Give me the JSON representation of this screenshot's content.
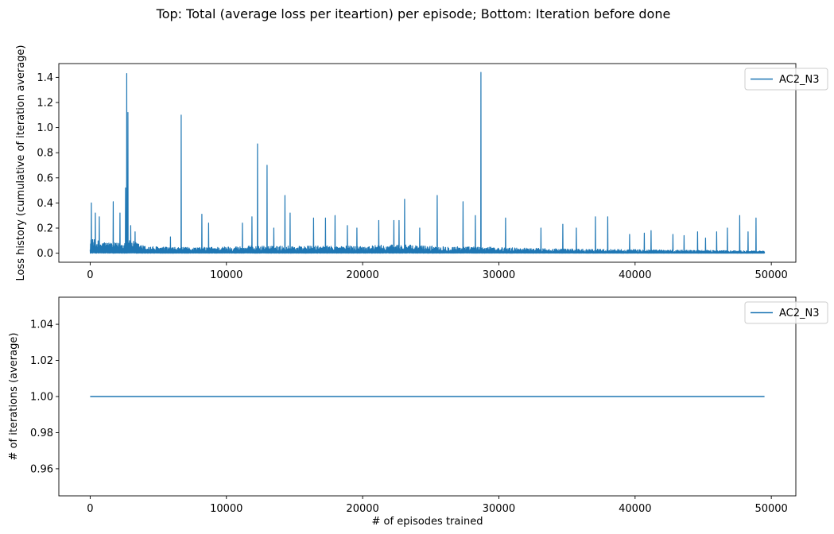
{
  "figure": {
    "suptitle": "Top: Total (average loss per iteartion) per episode; Bottom: Iteration before done"
  },
  "colors": {
    "series": "#1f77b4",
    "axis": "#000000",
    "legend_border": "#cccccc"
  },
  "chart_data": [
    {
      "type": "line",
      "position": "top",
      "xlabel": "",
      "ylabel": "Loss history (cumulative of iteration average)",
      "xlim": [
        -2300,
        51800
      ],
      "ylim": [
        -0.072,
        1.51
      ],
      "xticks": [
        0,
        10000,
        20000,
        30000,
        40000,
        50000
      ],
      "xtick_labels": [
        "0",
        "10000",
        "20000",
        "30000",
        "40000",
        "50000"
      ],
      "yticks": [
        0.0,
        0.2,
        0.4,
        0.6,
        0.8,
        1.0,
        1.2,
        1.4
      ],
      "ytick_labels": [
        "0.0",
        "0.2",
        "0.4",
        "0.6",
        "0.8",
        "1.0",
        "1.2",
        "1.4"
      ],
      "grid": false,
      "legend_position": "top-right",
      "series": [
        {
          "name": "AC2_N3",
          "x_range": [
            0,
            49500
          ],
          "baseline_noise": [
            [
              0,
              0.1
            ],
            [
              1000,
              0.08
            ],
            [
              2000,
              0.07
            ],
            [
              3000,
              0.09
            ],
            [
              4000,
              0.05
            ],
            [
              6000,
              0.04
            ],
            [
              8000,
              0.04
            ],
            [
              12000,
              0.05
            ],
            [
              16000,
              0.05
            ],
            [
              20000,
              0.05
            ],
            [
              22500,
              0.06
            ],
            [
              25000,
              0.05
            ],
            [
              30000,
              0.04
            ],
            [
              35000,
              0.03
            ],
            [
              40000,
              0.025
            ],
            [
              45000,
              0.02
            ],
            [
              49500,
              0.015
            ]
          ],
          "spikes": [
            [
              100,
              0.4
            ],
            [
              400,
              0.32
            ],
            [
              700,
              0.29
            ],
            [
              1700,
              0.41
            ],
            [
              2200,
              0.32
            ],
            [
              2600,
              0.52
            ],
            [
              2700,
              1.43
            ],
            [
              2800,
              1.12
            ],
            [
              3000,
              0.22
            ],
            [
              3300,
              0.17
            ],
            [
              5900,
              0.13
            ],
            [
              6700,
              1.1
            ],
            [
              8200,
              0.31
            ],
            [
              8700,
              0.24
            ],
            [
              11200,
              0.24
            ],
            [
              11900,
              0.29
            ],
            [
              12300,
              0.87
            ],
            [
              13000,
              0.7
            ],
            [
              13500,
              0.2
            ],
            [
              14300,
              0.46
            ],
            [
              14700,
              0.32
            ],
            [
              16400,
              0.28
            ],
            [
              17300,
              0.28
            ],
            [
              18000,
              0.3
            ],
            [
              18900,
              0.22
            ],
            [
              19600,
              0.2
            ],
            [
              21200,
              0.26
            ],
            [
              22300,
              0.26
            ],
            [
              22700,
              0.26
            ],
            [
              23100,
              0.43
            ],
            [
              24200,
              0.2
            ],
            [
              25500,
              0.46
            ],
            [
              27400,
              0.41
            ],
            [
              28300,
              0.3
            ],
            [
              28700,
              1.44
            ],
            [
              30500,
              0.28
            ],
            [
              33100,
              0.2
            ],
            [
              34700,
              0.23
            ],
            [
              35700,
              0.2
            ],
            [
              37100,
              0.29
            ],
            [
              38000,
              0.29
            ],
            [
              39600,
              0.15
            ],
            [
              40700,
              0.16
            ],
            [
              41200,
              0.18
            ],
            [
              42800,
              0.15
            ],
            [
              43600,
              0.14
            ],
            [
              44600,
              0.17
            ],
            [
              45200,
              0.12
            ],
            [
              46000,
              0.17
            ],
            [
              46800,
              0.2
            ],
            [
              47700,
              0.3
            ],
            [
              48300,
              0.17
            ],
            [
              48900,
              0.28
            ]
          ]
        }
      ]
    },
    {
      "type": "line",
      "position": "bottom",
      "xlabel": "# of episodes trained",
      "ylabel": "# of iterations (average)",
      "xlim": [
        -2300,
        51800
      ],
      "ylim": [
        0.945,
        1.055
      ],
      "xticks": [
        0,
        10000,
        20000,
        30000,
        40000,
        50000
      ],
      "xtick_labels": [
        "0",
        "10000",
        "20000",
        "30000",
        "40000",
        "50000"
      ],
      "yticks": [
        0.96,
        0.98,
        1.0,
        1.02,
        1.04
      ],
      "ytick_labels": [
        "0.96",
        "0.98",
        "1.00",
        "1.02",
        "1.04"
      ],
      "grid": false,
      "legend_position": "top-right",
      "series": [
        {
          "name": "AC2_N3",
          "x": [
            0,
            49500
          ],
          "y": [
            1.0,
            1.0
          ]
        }
      ]
    }
  ]
}
